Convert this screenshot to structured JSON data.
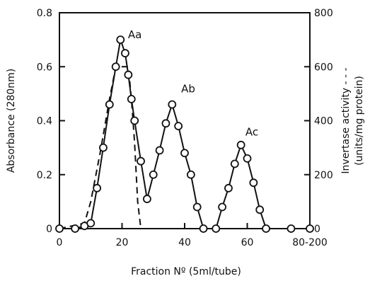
{
  "chart_data": {
    "type": "line",
    "title": "",
    "xlabel": "Fraction Nº (5ml/tube)",
    "ylabel_left": "Absorbance (280nm)",
    "ylabel_right_line1": "Invertase activity - - -",
    "ylabel_right_line2": "(units/mg protein)",
    "xlim": [
      0,
      80
    ],
    "ylim_left": [
      0,
      0.8
    ],
    "ylim_right": [
      0,
      800
    ],
    "x_ticks": [
      0,
      20,
      40,
      60,
      80
    ],
    "x_tick_labels": [
      "0",
      "20",
      "40",
      "60",
      "80-200"
    ],
    "y_left_ticks": [
      0,
      0.2,
      0.4,
      0.6,
      0.8
    ],
    "y_left_tick_labels": [
      "0",
      "0.2",
      "0.4",
      "0.6",
      "0.8"
    ],
    "y_right_ticks": [
      0,
      200,
      400,
      600,
      800
    ],
    "y_right_tick_labels": [
      "0",
      "200",
      "400",
      "600",
      "800"
    ],
    "grid": false,
    "series": [
      {
        "axis": "left",
        "style": "solid-circles",
        "points": [
          [
            0,
            0.0
          ],
          [
            5,
            0.0
          ],
          [
            8,
            0.01
          ],
          [
            10,
            0.02
          ],
          [
            12,
            0.15
          ],
          [
            14,
            0.3
          ],
          [
            16,
            0.46
          ],
          [
            18,
            0.6
          ],
          [
            19.5,
            0.7
          ],
          [
            21,
            0.65
          ],
          [
            22,
            0.57
          ],
          [
            23,
            0.48
          ],
          [
            24,
            0.4
          ],
          [
            26,
            0.25
          ],
          [
            28,
            0.11
          ],
          [
            30,
            0.2
          ],
          [
            32,
            0.29
          ],
          [
            34,
            0.39
          ],
          [
            36,
            0.46
          ],
          [
            38,
            0.38
          ],
          [
            40,
            0.28
          ],
          [
            42,
            0.2
          ],
          [
            44,
            0.08
          ],
          [
            46,
            0.0
          ],
          [
            50,
            0.0
          ],
          [
            52,
            0.08
          ],
          [
            54,
            0.15
          ],
          [
            56,
            0.24
          ],
          [
            58,
            0.31
          ],
          [
            60,
            0.26
          ],
          [
            62,
            0.17
          ],
          [
            64,
            0.07
          ],
          [
            66,
            0.0
          ],
          [
            74,
            0.0
          ],
          [
            80,
            0.0
          ]
        ]
      },
      {
        "axis": "right",
        "style": "dashed",
        "points": [
          [
            0,
            0
          ],
          [
            8,
            20
          ],
          [
            10,
            100
          ],
          [
            13,
            280
          ],
          [
            16,
            480
          ],
          [
            18,
            600
          ],
          [
            22,
            600
          ],
          [
            23,
            480
          ],
          [
            24,
            320
          ],
          [
            25,
            100
          ],
          [
            26,
            0
          ],
          [
            80,
            0
          ]
        ]
      }
    ],
    "annotations": [
      {
        "text": "Aa",
        "x": 21,
        "y": 0.7
      },
      {
        "text": "Ab",
        "x": 38,
        "y": 0.5
      },
      {
        "text": "Ac",
        "x": 58.5,
        "y": 0.34
      }
    ]
  }
}
